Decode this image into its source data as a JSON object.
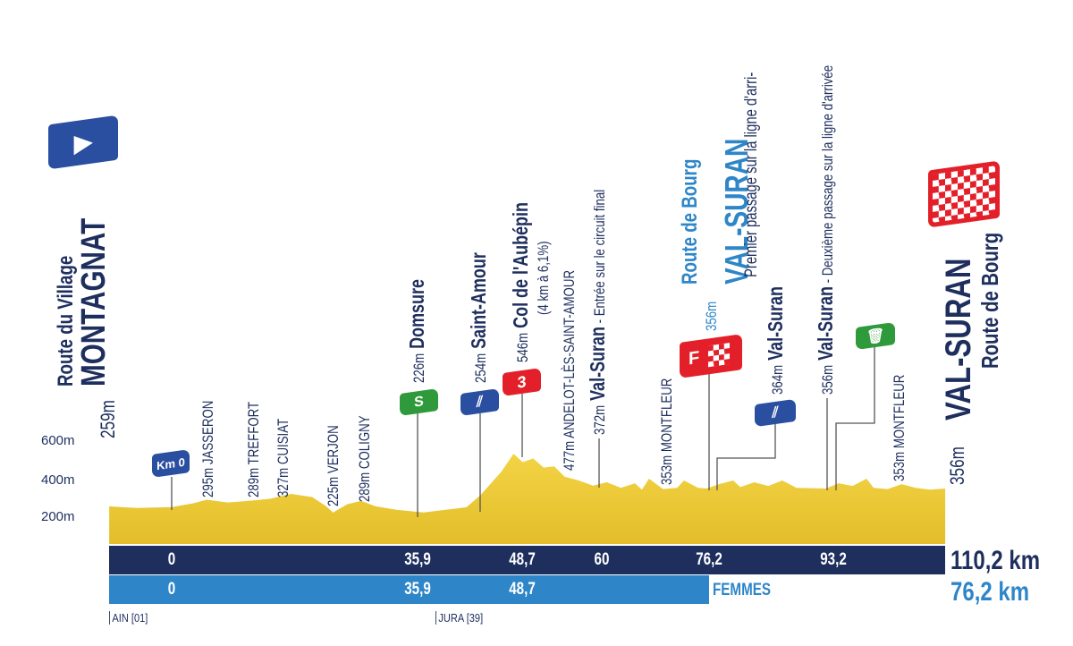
{
  "start": {
    "altitude": "259m",
    "town": "MONTAGNAT",
    "street": "Route du Village",
    "icon": "start-arrow-icon"
  },
  "finish": {
    "altitude": "356m",
    "town": "VAL-SURAN",
    "street": "Route de Bourg",
    "icon": "checkered-flag-icon"
  },
  "y_axis": [
    "600m",
    "400m",
    "200m"
  ],
  "km0_label": "Km 0",
  "places": [
    {
      "alt": "295m",
      "name": "JASSERON"
    },
    {
      "alt": "289m",
      "name": "TREFFORT"
    },
    {
      "alt": "327m",
      "name": "CUISIAT"
    },
    {
      "alt": "225m",
      "name": "VERJON"
    },
    {
      "alt": "289m",
      "name": "COLIGNY"
    },
    {
      "alt": "477m",
      "name": "ANDELOT-LÈS-SAINT-AMOUR"
    },
    {
      "alt": "353m",
      "name": "MONTFLEUR"
    },
    {
      "alt": "353m",
      "name": "MONTFLEUR"
    }
  ],
  "key_points": {
    "domsure": {
      "alt": "226m",
      "name": "Domsure",
      "sign": "S",
      "color": "#2f9a3c"
    },
    "saint_amour": {
      "alt": "254m",
      "name": "Saint-Amour",
      "icon": "feed-zone-icon",
      "color": "#2a4ea0"
    },
    "col": {
      "alt": "546m",
      "name": "Col de l'Aubépin",
      "detail": "(4 km à 6,1%)",
      "sign": "3",
      "color": "#e3202a"
    },
    "valsuran_entry": {
      "alt": "372m",
      "name": "Val-Suran",
      "note": " - Entrée sur le circuit final"
    },
    "valsuran_first": {
      "alt": "356m",
      "street": "Route de Bourg",
      "name": "VAL-SURAN",
      "note": "Premier passage sur la ligne d'arri-",
      "sign": "F",
      "color": "#e3202a"
    },
    "valsuran_feed": {
      "alt": "364m",
      "name": "Val-Suran",
      "icon": "feed-zone-icon",
      "color": "#2a4ea0"
    },
    "valsuran_second": {
      "alt": "356m",
      "name": "Val-Suran",
      "note": " - Deuxième passage sur la ligne d'arrivée"
    },
    "waste_zone": {
      "icon": "waste-bin-icon",
      "color": "#2f9a3c"
    }
  },
  "km_bar": {
    "men": [
      "0",
      "35,9",
      "48,7",
      "60",
      "76,2",
      "93,2"
    ],
    "men_total": "110,2 km",
    "women": [
      "0",
      "35,9",
      "48,7"
    ],
    "women_label": "FEMMES",
    "women_total": "76,2 km"
  },
  "departments": [
    "AIN [01]",
    "JURA [39]"
  ],
  "colors": {
    "navy": "#1e2f5e",
    "light_blue": "#2e86c8",
    "terrain": "#f0cf3a"
  },
  "chart_data": {
    "type": "area",
    "xlabel": "",
    "ylabel": "",
    "y_ticks": [
      "200m",
      "400m",
      "600m"
    ],
    "points_km_m": [
      [
        -8.9,
        259
      ],
      [
        -5,
        250
      ],
      [
        0,
        255
      ],
      [
        3,
        275
      ],
      [
        5,
        295
      ],
      [
        8,
        280
      ],
      [
        11,
        289
      ],
      [
        14,
        300
      ],
      [
        17,
        327
      ],
      [
        20,
        310
      ],
      [
        22,
        260
      ],
      [
        23,
        225
      ],
      [
        25,
        270
      ],
      [
        27,
        289
      ],
      [
        29,
        260
      ],
      [
        32,
        240
      ],
      [
        35.9,
        226
      ],
      [
        39,
        240
      ],
      [
        42,
        254
      ],
      [
        44,
        320
      ],
      [
        47,
        450
      ],
      [
        48.7,
        546
      ],
      [
        50,
        500
      ],
      [
        51.5,
        520
      ],
      [
        53,
        470
      ],
      [
        54.5,
        477
      ],
      [
        56,
        420
      ],
      [
        58,
        400
      ],
      [
        60,
        372
      ],
      [
        62,
        390
      ],
      [
        64,
        360
      ],
      [
        66,
        385
      ],
      [
        67,
        350
      ],
      [
        68,
        410
      ],
      [
        70,
        353
      ],
      [
        72,
        360
      ],
      [
        73,
        400
      ],
      [
        75,
        360
      ],
      [
        76.2,
        356
      ],
      [
        78,
        380
      ],
      [
        80,
        400
      ],
      [
        81,
        364
      ],
      [
        83,
        390
      ],
      [
        85,
        370
      ],
      [
        87,
        400
      ],
      [
        89,
        360
      ],
      [
        93.2,
        356
      ],
      [
        95,
        385
      ],
      [
        97,
        370
      ],
      [
        99,
        410
      ],
      [
        100,
        360
      ],
      [
        102,
        353
      ],
      [
        104,
        380
      ],
      [
        106,
        360
      ],
      [
        108,
        350
      ],
      [
        110.2,
        356
      ]
    ]
  }
}
